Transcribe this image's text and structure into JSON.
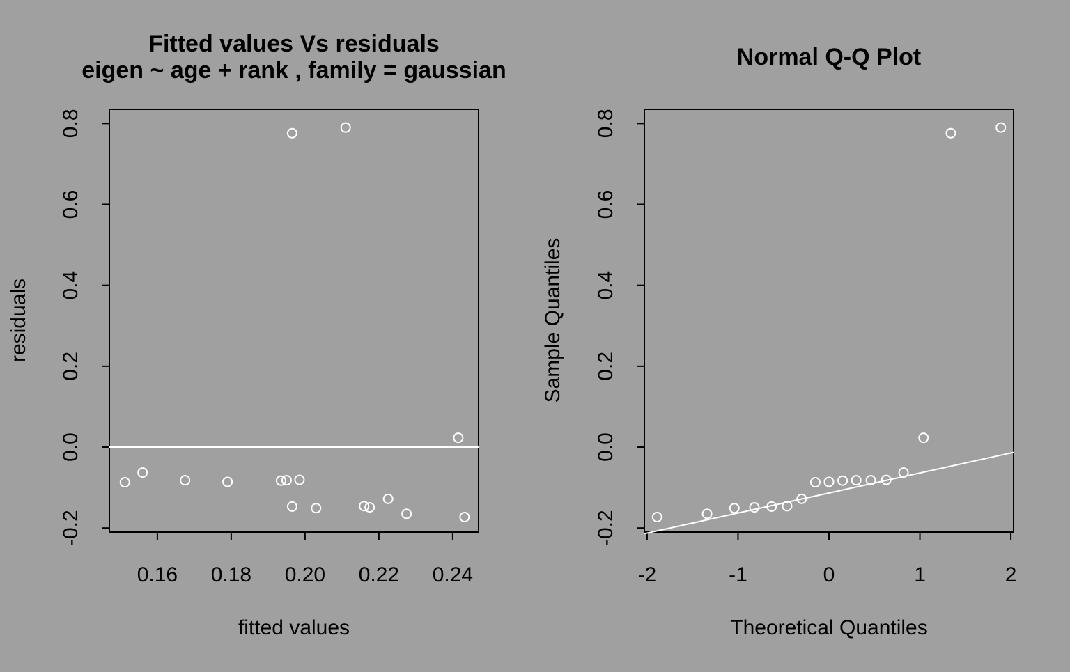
{
  "figure": {
    "background_color": "#a0a0a0",
    "point_color": "#ffffff",
    "line_color": "#ffffff",
    "frame_color": "#000000"
  },
  "chart_data": [
    {
      "type": "scatter",
      "title": [
        "Fitted values Vs residuals",
        "eigen ~ age + rank , family = gaussian"
      ],
      "xlabel": "fitted values",
      "ylabel": "residuals",
      "xlim": [
        0.147,
        0.247
      ],
      "ylim": [
        -0.21,
        0.835
      ],
      "xticks": [
        0.16,
        0.18,
        0.2,
        0.22,
        0.24
      ],
      "xtick_labels": [
        "0.16",
        "0.18",
        "0.20",
        "0.22",
        "0.24"
      ],
      "yticks": [
        -0.2,
        0.0,
        0.2,
        0.4,
        0.6,
        0.8
      ],
      "ytick_labels": [
        "-0.2",
        "0.0",
        "0.2",
        "0.4",
        "0.6",
        "0.8"
      ],
      "grid": false,
      "reference_line": {
        "type": "horizontal",
        "y": 0.0
      },
      "series": [
        {
          "x": [
            0.1512,
            0.156,
            0.1675,
            0.179,
            0.1935,
            0.195,
            0.1985,
            0.1965,
            0.1965,
            0.203,
            0.211,
            0.216,
            0.2175,
            0.2225,
            0.2275,
            0.2415,
            0.2432
          ],
          "y": [
            -0.087,
            -0.063,
            -0.082,
            -0.086,
            -0.083,
            -0.082,
            -0.081,
            -0.147,
            0.776,
            -0.151,
            0.79,
            -0.146,
            -0.149,
            -0.128,
            -0.165,
            0.023,
            -0.173
          ]
        }
      ]
    },
    {
      "type": "scatter",
      "title": [
        "Normal Q-Q Plot"
      ],
      "xlabel": "Theoretical Quantiles",
      "ylabel": "Sample Quantiles",
      "xlim": [
        -2.03,
        2.03
      ],
      "ylim": [
        -0.21,
        0.835
      ],
      "xticks": [
        -2,
        -1,
        0,
        1,
        2
      ],
      "xtick_labels": [
        "-2",
        "-1",
        "0",
        "1",
        "2"
      ],
      "yticks": [
        -0.2,
        0.0,
        0.2,
        0.4,
        0.6,
        0.8
      ],
      "ytick_labels": [
        "-0.2",
        "0.0",
        "0.2",
        "0.4",
        "0.6",
        "0.8"
      ],
      "grid": false,
      "reference_line": {
        "type": "qqline",
        "x": [
          -2.03,
          2.03
        ],
        "y": [
          -0.214,
          -0.013
        ]
      },
      "series": [
        {
          "x": [
            -1.89,
            -1.34,
            -1.04,
            -0.82,
            -0.63,
            -0.46,
            -0.3,
            -0.15,
            0.0,
            0.15,
            0.3,
            0.46,
            0.63,
            0.82,
            1.04,
            1.34,
            1.89
          ],
          "y": [
            -0.173,
            -0.165,
            -0.151,
            -0.149,
            -0.147,
            -0.146,
            -0.128,
            -0.087,
            -0.086,
            -0.083,
            -0.082,
            -0.082,
            -0.081,
            -0.063,
            0.023,
            0.776,
            0.79
          ]
        }
      ]
    }
  ]
}
